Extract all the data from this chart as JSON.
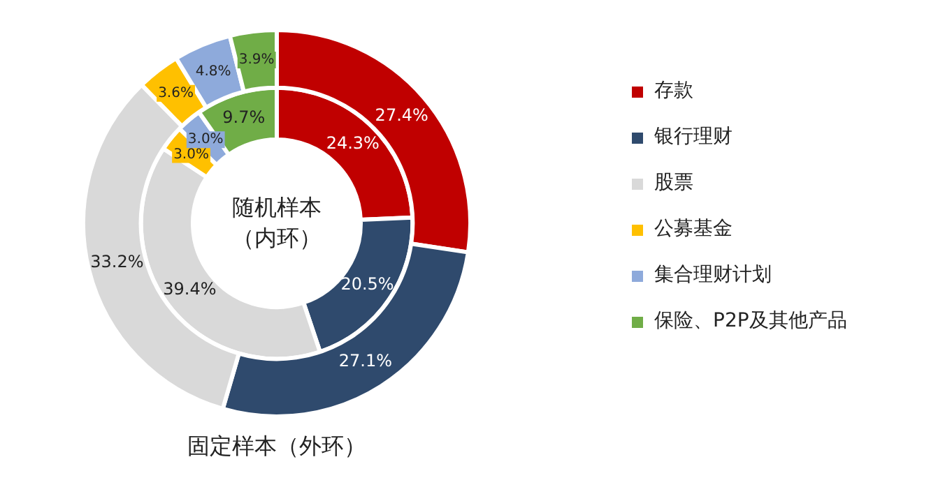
{
  "chart_data": {
    "type": "donut",
    "categories": [
      "存款",
      "银行理财",
      "股票",
      "公募基金",
      "集合理财计划",
      "保险、P2P及其他产品"
    ],
    "colors": [
      "#c00000",
      "#2f4a6d",
      "#d9d9d9",
      "#ffc000",
      "#8eaadb",
      "#70ad47"
    ],
    "series": [
      {
        "name": "固定样本（外环）",
        "values": [
          27.4,
          27.1,
          33.2,
          3.6,
          4.8,
          3.9
        ],
        "value_labels": [
          "27.4%",
          "27.1%",
          "33.2%",
          "3.6%",
          "4.8%",
          "3.9%"
        ]
      },
      {
        "name": "随机样本（内环）",
        "values": [
          24.3,
          20.5,
          39.4,
          3.0,
          3.0,
          9.7
        ],
        "value_labels": [
          "24.3%",
          "20.5%",
          "39.4%",
          "3.0%",
          "3.0%",
          "9.7%"
        ]
      }
    ],
    "legend": "right"
  }
}
